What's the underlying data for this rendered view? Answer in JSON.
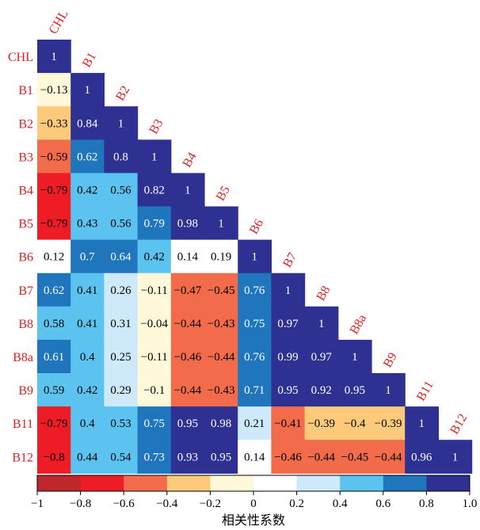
{
  "chart_data": {
    "type": "heatmap",
    "variables": [
      "CHL",
      "B1",
      "B2",
      "B3",
      "B4",
      "B5",
      "B6",
      "B7",
      "B8",
      "B8a",
      "B9",
      "B11",
      "B12"
    ],
    "matrix_lower": [
      [
        "1"
      ],
      [
        "−0.13",
        "1"
      ],
      [
        "−0.33",
        "0.84",
        "1"
      ],
      [
        "−0.59",
        "0.62",
        "0.8",
        "1"
      ],
      [
        "−0.79",
        "0.42",
        "0.56",
        "0.82",
        "1"
      ],
      [
        "−0.79",
        "0.43",
        "0.56",
        "0.79",
        "0.98",
        "1"
      ],
      [
        "0.12",
        "0.7",
        "0.64",
        "0.42",
        "0.14",
        "0.19",
        "1"
      ],
      [
        "0.62",
        "0.41",
        "0.26",
        "−0.11",
        "−0.47",
        "−0.45",
        "0.76",
        "1"
      ],
      [
        "0.58",
        "0.41",
        "0.31",
        "−0.04",
        "−0.44",
        "−0.43",
        "0.75",
        "0.97",
        "1"
      ],
      [
        "0.61",
        "0.4",
        "0.25",
        "−0.11",
        "−0.46",
        "−0.44",
        "0.76",
        "0.99",
        "0.97",
        "1"
      ],
      [
        "0.59",
        "0.42",
        "0.29",
        "−0.1",
        "−0.44",
        "−0.43",
        "0.71",
        "0.95",
        "0.92",
        "0.95",
        "1"
      ],
      [
        "−0.79",
        "0.4",
        "0.53",
        "0.75",
        "0.95",
        "0.98",
        "0.21",
        "−0.41",
        "−0.39",
        "−0.4",
        "−0.39",
        "1"
      ],
      [
        "−0.8",
        "0.44",
        "0.54",
        "0.73",
        "0.93",
        "0.95",
        "0.14",
        "−0.46",
        "−0.44",
        "−0.45",
        "−0.44",
        "0.96",
        "1"
      ]
    ],
    "colorbar": {
      "bins": [
        -1,
        -0.8,
        -0.6,
        -0.4,
        -0.2,
        0,
        0.2,
        0.4,
        0.6,
        0.8,
        1.0
      ],
      "colors": [
        "#c0272d",
        "#ee1c24",
        "#f26b4a",
        "#fdc97b",
        "#fff8d9",
        "#ffffff",
        "#cde9fa",
        "#5cc3f1",
        "#1f76bc",
        "#2e3192"
      ],
      "tick_labels": [
        "−1",
        "−0.8",
        "−0.6",
        "−0.4",
        "−0.2",
        "0",
        "0.2",
        "0.4",
        "0.6",
        "0.8",
        "1.0"
      ],
      "title": "相关性系数"
    },
    "label_color": "#e0201f"
  }
}
